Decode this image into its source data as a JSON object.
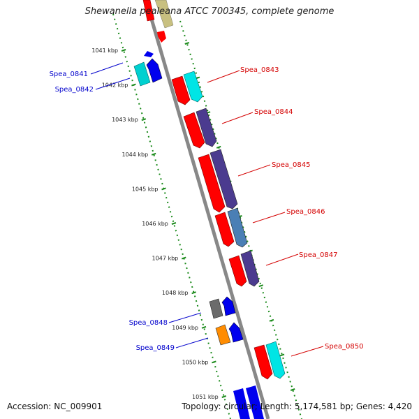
{
  "title": "Shewanella pealeana ATCC 700345, complete genome",
  "footer": {
    "accession": "Accession: NC_009901",
    "topology": "Topology: circular; Length: 5,174,581 bp; Genes: 4,420"
  },
  "colors": {
    "red": "#ff0000",
    "cyan": "#00e5e5",
    "purple": "#4b3b8f",
    "steelblue": "#4a7fb5",
    "blue": "#0000ee",
    "gray": "#6b6b6b",
    "orange": "#ff8c00",
    "khaki": "#c8c080",
    "backbone": "#888888",
    "tick": "#1a8a1a",
    "label_red": "#d40000",
    "label_blue": "#0000cc"
  },
  "kbp_labels": [
    "1041 kbp",
    "1042 kbp",
    "1043 kbp",
    "1044 kbp",
    "1045 kbp",
    "1046 kbp",
    "1047 kbp",
    "1048 kbp",
    "1049 kbp",
    "1050 kbp",
    "1051 kbp"
  ],
  "genes_right": [
    {
      "name": "Spea_0843"
    },
    {
      "name": "Spea_0844"
    },
    {
      "name": "Spea_0845"
    },
    {
      "name": "Spea_0846"
    },
    {
      "name": "Spea_0847"
    },
    {
      "name": "Spea_0850"
    }
  ],
  "genes_left": [
    {
      "name": "Spea_0841"
    },
    {
      "name": "Spea_0842"
    },
    {
      "name": "Spea_0848"
    },
    {
      "name": "Spea_0849"
    }
  ]
}
